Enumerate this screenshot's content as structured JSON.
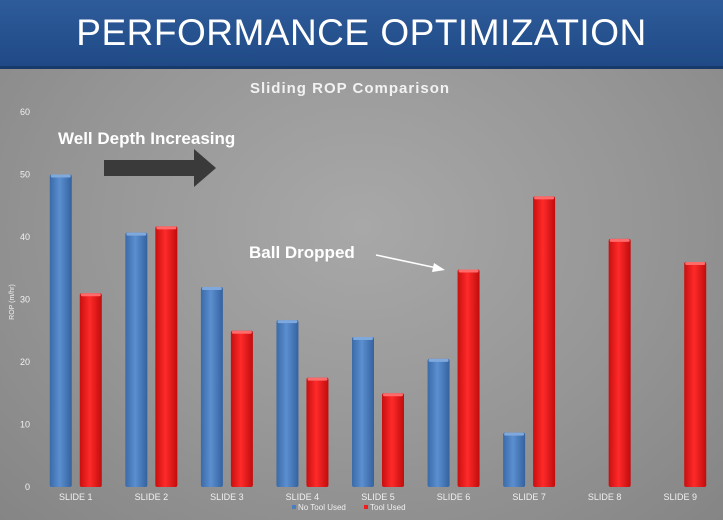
{
  "header": {
    "title": "PERFORMANCE OPTIMIZATION"
  },
  "chart_data": {
    "type": "bar",
    "title": "Sliding ROP Comparison",
    "ylabel": "ROP (m/hr)",
    "xlabel": "",
    "ylim": [
      0,
      60
    ],
    "yticks": [
      0,
      10,
      20,
      30,
      40,
      50,
      60
    ],
    "categories": [
      "SLIDE 1",
      "SLIDE 2",
      "SLIDE 3",
      "SLIDE 4",
      "SLIDE 5",
      "SLIDE 6",
      "SLIDE 7",
      "SLIDE 8",
      "SLIDE 9"
    ],
    "series": [
      {
        "name": "No Tool Used",
        "color": "#4a7ebf",
        "values": [
          50,
          40.7,
          32,
          26.7,
          24,
          20.5,
          8.7,
          null,
          null
        ]
      },
      {
        "name": "Tool Used",
        "color": "#ee1c1c",
        "values": [
          31,
          41.7,
          25,
          17.5,
          15,
          34.8,
          46.5,
          39.7,
          36
        ]
      }
    ],
    "legend_position": "bottom",
    "grid": false,
    "annotations": [
      {
        "text": "Well Depth Increasing",
        "icon": "right-arrow-icon"
      },
      {
        "text": "Ball Dropped",
        "icon": "pointer-arrow-icon"
      }
    ]
  }
}
